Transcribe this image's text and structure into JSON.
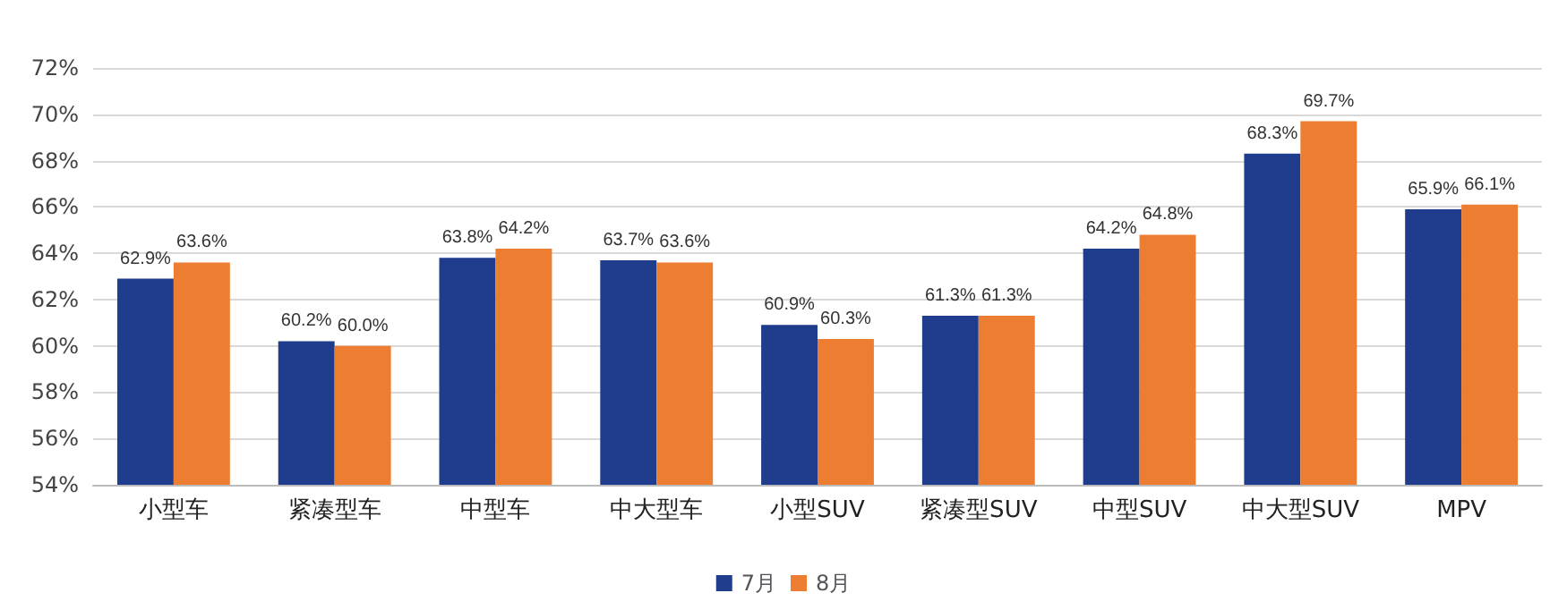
{
  "chart_data": {
    "type": "bar",
    "categories": [
      "小型车",
      "紧凑型车",
      "中型车",
      "中大型车",
      "小型SUV",
      "紧凑型SUV",
      "中型SUV",
      "中大型SUV",
      "MPV"
    ],
    "series": [
      {
        "name": "7月",
        "color": "#1f3d8c",
        "values": [
          62.9,
          60.2,
          63.8,
          63.7,
          60.9,
          61.3,
          64.2,
          68.3,
          65.9
        ],
        "value_labels": [
          "62.9%",
          "60.2%",
          "63.8%",
          "63.7%",
          "60.9%",
          "61.3%",
          "64.2%",
          "68.3%",
          "65.9%"
        ]
      },
      {
        "name": "8月",
        "color": "#ed7d31",
        "values": [
          63.6,
          60.0,
          64.2,
          63.6,
          60.3,
          61.3,
          64.8,
          69.7,
          66.1
        ],
        "value_labels": [
          "63.6%",
          "60.0%",
          "64.2%",
          "63.6%",
          "60.3%",
          "61.3%",
          "64.8%",
          "69.7%",
          "66.1%"
        ]
      }
    ],
    "ylim": [
      54,
      72
    ],
    "yticks": [
      {
        "value": 54,
        "label": "54%"
      },
      {
        "value": 56,
        "label": "56%"
      },
      {
        "value": 58,
        "label": "58%"
      },
      {
        "value": 60,
        "label": "60%"
      },
      {
        "value": 62,
        "label": "62%"
      },
      {
        "value": 64,
        "label": "64%"
      },
      {
        "value": 66,
        "label": "66%"
      },
      {
        "value": 68,
        "label": "68%"
      },
      {
        "value": 70,
        "label": "70%"
      },
      {
        "value": 72,
        "label": "72%"
      }
    ],
    "grid": "y",
    "legend": "bottom"
  }
}
